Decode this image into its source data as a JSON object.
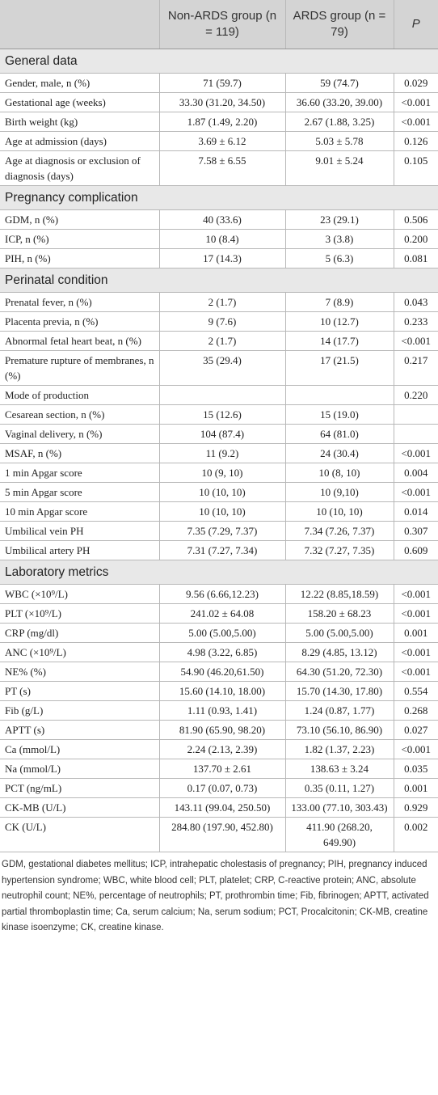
{
  "table": {
    "columns": [
      "Non-ARDS group (n = 119)",
      "ARDS group (n = 79)",
      "P"
    ],
    "sections": [
      {
        "title": "General data",
        "rows": [
          [
            "Gender, male, n (%)",
            "71 (59.7)",
            "59 (74.7)",
            "0.029"
          ],
          [
            "Gestational age (weeks)",
            "33.30 (31.20, 34.50)",
            "36.60 (33.20, 39.00)",
            "<0.001"
          ],
          [
            "Birth weight (kg)",
            "1.87 (1.49, 2.20)",
            "2.67 (1.88, 3.25)",
            "<0.001"
          ],
          [
            "Age at admission (days)",
            "3.69 ± 6.12",
            "5.03 ± 5.78",
            "0.126"
          ],
          [
            "Age at diagnosis or exclusion of diagnosis (days)",
            "7.58 ± 6.55",
            "9.01 ± 5.24",
            "0.105"
          ]
        ]
      },
      {
        "title": "Pregnancy complication",
        "rows": [
          [
            "GDM, n (%)",
            "40 (33.6)",
            "23 (29.1)",
            "0.506"
          ],
          [
            "ICP, n (%)",
            "10 (8.4)",
            "3 (3.8)",
            "0.200"
          ],
          [
            "PIH, n (%)",
            "17 (14.3)",
            "5 (6.3)",
            "0.081"
          ]
        ]
      },
      {
        "title": "Perinatal condition",
        "rows": [
          [
            "Prenatal fever, n (%)",
            "2 (1.7)",
            "7 (8.9)",
            "0.043"
          ],
          [
            "Placenta previa, n (%)",
            "9 (7.6)",
            "10 (12.7)",
            "0.233"
          ],
          [
            "Abnormal fetal heart beat, n (%)",
            "2 (1.7)",
            "14 (17.7)",
            "<0.001"
          ],
          [
            "Premature rupture of membranes, n (%)",
            "35 (29.4)",
            "17 (21.5)",
            "0.217"
          ],
          [
            "Mode of production",
            null,
            null,
            "0.220"
          ],
          [
            "Cesarean section, n (%)",
            "15 (12.6)",
            "15 (19.0)",
            null
          ],
          [
            "Vaginal delivery, n (%)",
            "104 (87.4)",
            "64 (81.0)",
            null
          ],
          [
            "MSAF, n (%)",
            "11 (9.2)",
            "24 (30.4)",
            "<0.001"
          ],
          [
            "1 min Apgar score",
            "10 (9, 10)",
            "10 (8, 10)",
            "0.004"
          ],
          [
            "5 min Apgar score",
            "10 (10, 10)",
            "10 (9,10)",
            "<0.001"
          ],
          [
            "10 min Apgar score",
            "10 (10, 10)",
            "10 (10, 10)",
            "0.014"
          ],
          [
            "Umbilical vein PH",
            "7.35 (7.29, 7.37)",
            "7.34 (7.26, 7.37)",
            "0.307"
          ],
          [
            "Umbilical artery PH",
            "7.31 (7.27, 7.34)",
            "7.32 (7.27, 7.35)",
            "0.609"
          ]
        ]
      },
      {
        "title": "Laboratory metrics",
        "rows": [
          [
            "WBC (×10⁹/L)",
            "9.56 (6.66,12.23)",
            "12.22 (8.85,18.59)",
            "<0.001"
          ],
          [
            "PLT (×10⁹/L)",
            "241.02 ± 64.08",
            "158.20 ± 68.23",
            "<0.001"
          ],
          [
            "CRP (mg/dl)",
            "5.00 (5.00,5.00)",
            "5.00 (5.00,5.00)",
            "0.001"
          ],
          [
            "ANC (×10⁹/L)",
            "4.98 (3.22, 6.85)",
            "8.29 (4.85, 13.12)",
            "<0.001"
          ],
          [
            "NE% (%)",
            "54.90 (46.20,61.50)",
            "64.30 (51.20, 72.30)",
            "<0.001"
          ],
          [
            "PT (s)",
            "15.60 (14.10, 18.00)",
            "15.70 (14.30, 17.80)",
            "0.554"
          ],
          [
            "Fib (g/L)",
            "1.11 (0.93, 1.41)",
            "1.24 (0.87, 1.77)",
            "0.268"
          ],
          [
            "APTT (s)",
            "81.90 (65.90, 98.20)",
            "73.10 (56.10, 86.90)",
            "0.027"
          ],
          [
            "Ca (mmol/L)",
            "2.24 (2.13, 2.39)",
            "1.82 (1.37, 2.23)",
            "<0.001"
          ],
          [
            "Na (mmol/L)",
            "137.70 ± 2.61",
            "138.63 ± 3.24",
            "0.035"
          ],
          [
            "PCT (ng/mL)",
            "0.17 (0.07, 0.73)",
            "0.35 (0.11, 1.27)",
            "0.001"
          ],
          [
            "CK-MB (U/L)",
            "143.11 (99.04, 250.50)",
            "133.00 (77.10, 303.43)",
            "0.929"
          ],
          [
            "CK (U/L)",
            "284.80 (197.90, 452.80)",
            "411.90 (268.20, 649.90)",
            "0.002"
          ]
        ]
      }
    ]
  },
  "footnote": "GDM, gestational diabetes mellitus; ICP, intrahepatic cholestasis of pregnancy; PIH, pregnancy induced hypertension syndrome; WBC, white blood cell; PLT, platelet; CRP, C-reactive protein; ANC, absolute neutrophil count; NE%, percentage of neutrophils; PT, prothrombin time; Fib, fibrinogen; APTT, activated partial thromboplastin time; Ca, serum calcium; Na, serum sodium; PCT, Procalcitonin; CK-MB, creatine kinase isoenzyme; CK, creatine kinase."
}
